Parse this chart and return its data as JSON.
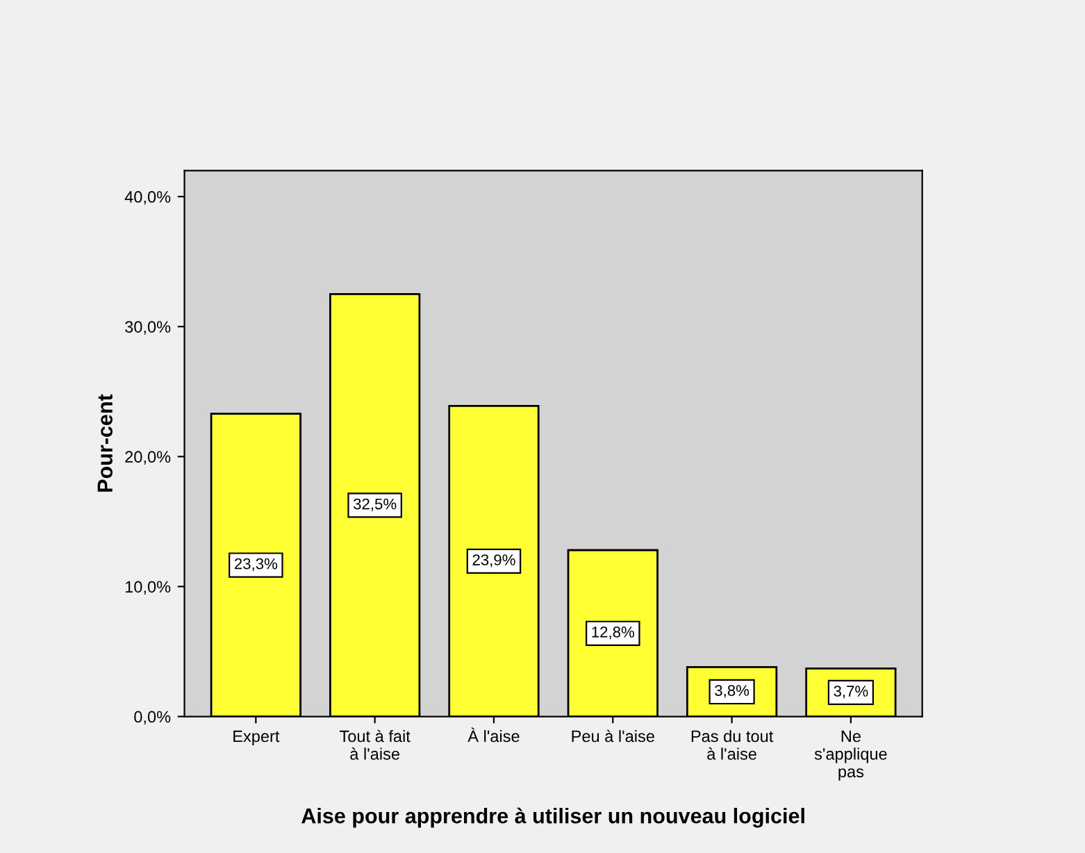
{
  "chart_data": {
    "type": "bar",
    "xlabel": "Aise pour apprendre à utiliser un nouveau logiciel",
    "ylabel": "Pour-cent",
    "categories": [
      "Expert",
      "Tout à fait\nà l'aise",
      "À l'aise",
      "Peu à l'aise",
      "Pas du tout\nà l'aise",
      "Ne\ns'applique\npas"
    ],
    "values": [
      23.3,
      32.5,
      23.9,
      12.8,
      3.8,
      3.7
    ],
    "value_labels": [
      "23,3%",
      "32,5%",
      "23,9%",
      "12,8%",
      "3,8%",
      "3,7%"
    ],
    "color": "#ffff33",
    "ylim": [
      0,
      42
    ],
    "yticks": [
      {
        "value": 0,
        "label": "0,0%"
      },
      {
        "value": 10,
        "label": "10,0%"
      },
      {
        "value": 20,
        "label": "20,0%"
      },
      {
        "value": 30,
        "label": "30,0%"
      },
      {
        "value": 40,
        "label": "40,0%"
      }
    ],
    "grid": false
  }
}
